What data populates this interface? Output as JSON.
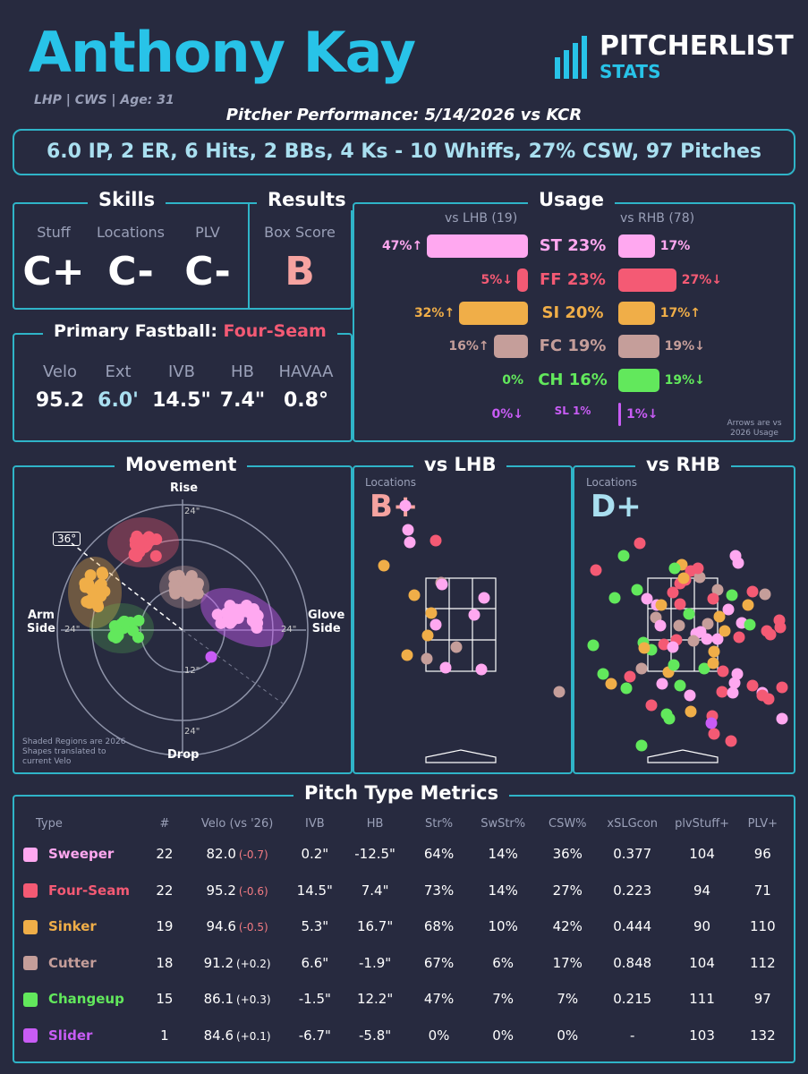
{
  "header": {
    "name": "Anthony Kay",
    "subtitle": "LHP | CWS | Age: 31",
    "performance": "Pitcher Performance: 5/14/2026 vs KCR",
    "logo_top": "PITCHERLIST",
    "logo_bottom": "STATS"
  },
  "statline": "6.0 IP, 2 ER, 6 Hits, 2 BBs, 4 Ks - 10 Whiffs, 27% CSW, 97 Pitches",
  "skills": {
    "title": "Skills",
    "labels": [
      "Stuff",
      "Locations",
      "PLV"
    ],
    "grades": [
      "C+",
      "C-",
      "C-"
    ]
  },
  "results": {
    "title": "Results",
    "label": "Box Score",
    "grade": "B",
    "grade_color": "#f6a3a0"
  },
  "fastball": {
    "title_prefix": "Primary Fastball:",
    "pitch": "Four-Seam",
    "labels": [
      "Velo",
      "Ext",
      "IVB",
      "HB",
      "HAVAA"
    ],
    "values": [
      "95.2",
      "6.0'",
      "14.5\"",
      "7.4\"",
      "0.8°"
    ]
  },
  "usage": {
    "title": "Usage",
    "lhb_header": "vs LHB (19)",
    "rhb_header": "vs RHB (78)",
    "note": "Arrows are vs 2026 Usage",
    "rows": [
      {
        "label": "ST 23%",
        "color": "#ffa8f0",
        "lhb": 47,
        "lhb_text": "47%↑",
        "rhb": 17,
        "rhb_text": "17%"
      },
      {
        "label": "FF 23%",
        "color": "#f45a74",
        "lhb": 5,
        "lhb_text": "5%↓",
        "rhb": 27,
        "rhb_text": "27%↓"
      },
      {
        "label": "SI 20%",
        "color": "#f0ae48",
        "lhb": 32,
        "lhb_text": "32%↑",
        "rhb": 17,
        "rhb_text": "17%↑"
      },
      {
        "label": "FC 19%",
        "color": "#c59e9a",
        "lhb": 16,
        "lhb_text": "16%↑",
        "rhb": 19,
        "rhb_text": "19%↓"
      },
      {
        "label": "CH 16%",
        "color": "#62e85c",
        "lhb": 0,
        "lhb_text": "0%",
        "rhb": 19,
        "rhb_text": "19%↓"
      },
      {
        "label": "SL 1%",
        "color": "#c85cf5",
        "lhb": 0,
        "lhb_text": "0%↓",
        "rhb": 1,
        "rhb_text": "1%↓"
      }
    ]
  },
  "movement": {
    "title": "Movement",
    "rise": "Rise",
    "drop": "Drop",
    "arm": "Arm",
    "arm2": "Side",
    "glove": "Glove",
    "glove2": "Side",
    "angle": "36°",
    "ring_labels": [
      "24\"",
      "12\"",
      "24\"",
      "24\"",
      "24\"",
      "12\""
    ],
    "note": "Shaded Regions are 2026 Shapes translated to current Velo"
  },
  "vs_lhb": {
    "title": "vs LHB",
    "label": "Locations",
    "grade": "B+",
    "grade_color": "#f6a3a0"
  },
  "vs_rhb": {
    "title": "vs RHB",
    "label": "Locations",
    "grade": "D+",
    "grade_color": "#a9dff0"
  },
  "metrics": {
    "title": "Pitch Type Metrics",
    "headers": [
      "Type",
      "#",
      "Velo (vs '26)",
      "IVB",
      "HB",
      "Str%",
      "SwStr%",
      "CSW%",
      "xSLGcon",
      "plvStuff+",
      "PLV+"
    ],
    "rows": [
      {
        "color": "#ffa8f0",
        "type": "Sweeper",
        "n": "22",
        "velo": "82.0",
        "vd": "(-0.7)",
        "ivb": "0.2\"",
        "hb": "-12.5\"",
        "str": "64%",
        "sw": "14%",
        "csw": "36%",
        "xslg": "0.377",
        "stuff": "104",
        "plv": "96",
        "c": [
          "",
          "",
          "",
          "red",
          "",
          "blue",
          "blue"
        ]
      },
      {
        "color": "#f45a74",
        "type": "Four-Seam",
        "n": "22",
        "velo": "95.2",
        "vd": "(-0.6)",
        "ivb": "14.5\"",
        "hb": "7.4\"",
        "str": "73%",
        "sw": "14%",
        "csw": "27%",
        "xslg": "0.223",
        "stuff": "94",
        "plv": "71",
        "c": [
          "",
          "",
          "red",
          "",
          "red",
          "",
          "blue"
        ]
      },
      {
        "color": "#f0ae48",
        "type": "Sinker",
        "n": "19",
        "velo": "94.6",
        "vd": "(-0.5)",
        "ivb": "5.3\"",
        "hb": "16.7\"",
        "str": "68%",
        "sw": "10%",
        "csw": "42%",
        "xslg": "0.444",
        "stuff": "90",
        "plv": "110",
        "c": [
          "",
          "",
          "red",
          "red",
          "",
          "red",
          "red"
        ]
      },
      {
        "color": "#c59e9a",
        "type": "Cutter",
        "n": "18",
        "velo": "91.2",
        "vd": "(+0.2)",
        "ivb": "6.6\"",
        "hb": "-1.9\"",
        "str": "67%",
        "sw": "6%",
        "csw": "17%",
        "xslg": "0.848",
        "stuff": "104",
        "plv": "112",
        "c": [
          "",
          "",
          "blue",
          "",
          "blue",
          "blue",
          "red"
        ]
      },
      {
        "color": "#62e85c",
        "type": "Changeup",
        "n": "15",
        "velo": "86.1",
        "vd": "(+0.3)",
        "ivb": "-1.5\"",
        "hb": "12.2\"",
        "str": "47%",
        "sw": "7%",
        "csw": "7%",
        "xslg": "0.215",
        "stuff": "111",
        "plv": "97",
        "c": [
          "",
          "",
          "blue",
          "blue",
          "red",
          "",
          ""
        ]
      },
      {
        "color": "#c85cf5",
        "type": "Slider",
        "n": "1",
        "velo": "84.6",
        "vd": "(+0.1)",
        "ivb": "-6.7\"",
        "hb": "-5.8\"",
        "str": "0%",
        "sw": "0%",
        "csw": "0%",
        "xslg": "-",
        "stuff": "103",
        "plv": "132",
        "c": [
          "",
          "",
          "blue",
          "blue",
          "",
          "",
          "red"
        ]
      }
    ]
  }
}
